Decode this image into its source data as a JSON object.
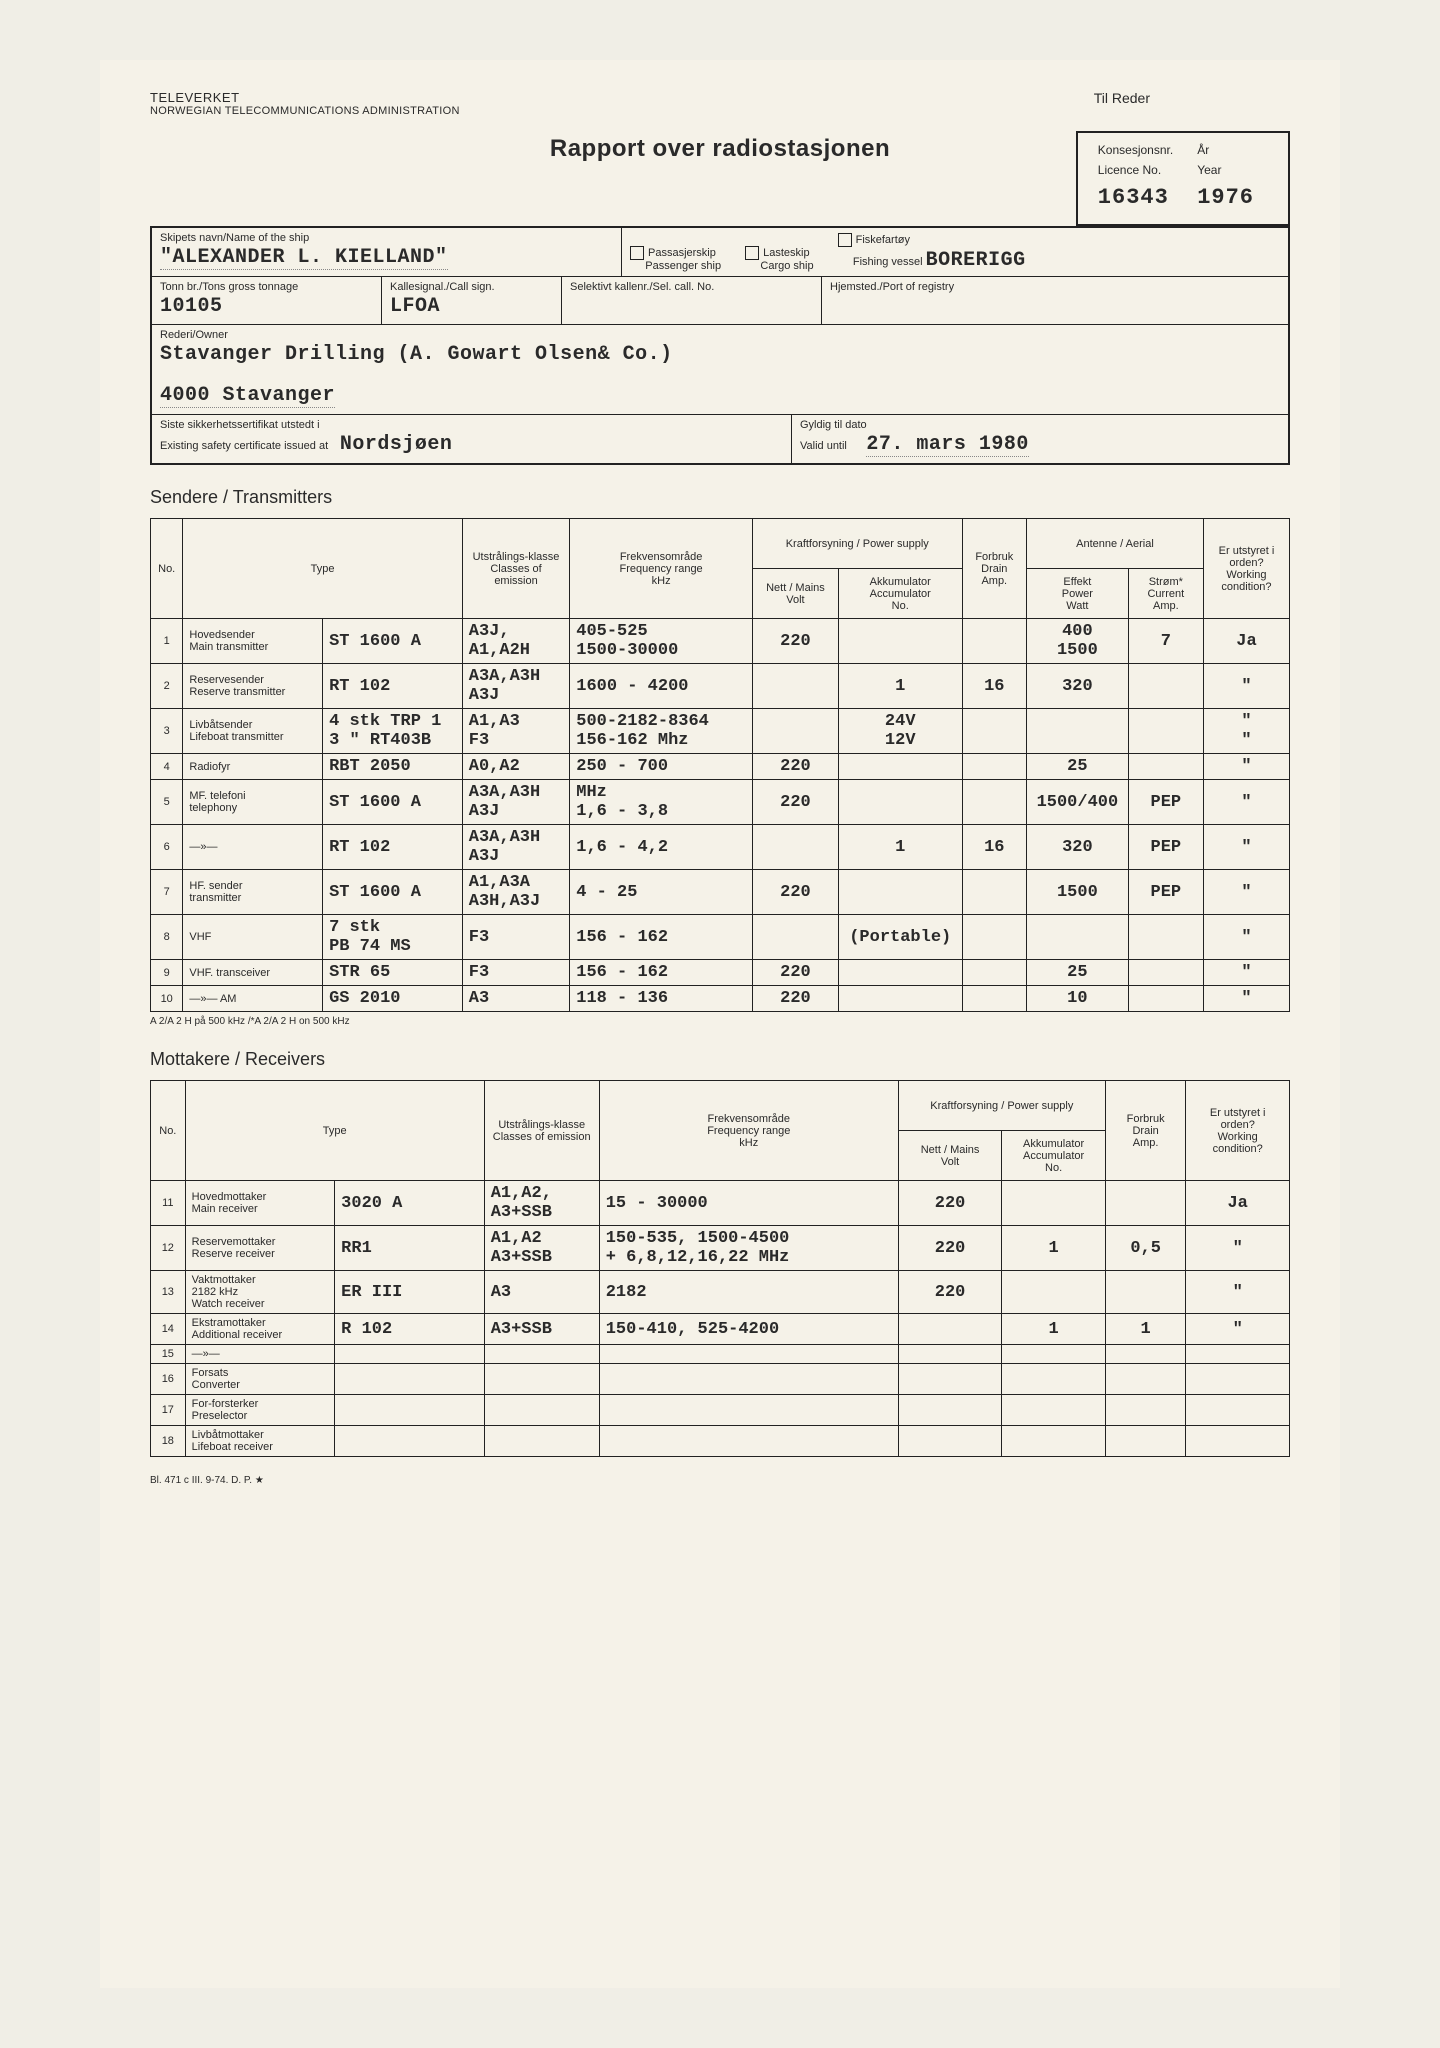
{
  "agency": {
    "name": "TELEVERKET",
    "sub": "NORWEGIAN TELECOMMUNICATIONS ADMINISTRATION"
  },
  "til_reder": "Til Reder",
  "title": "Rapport over radiostasjonen",
  "licence": {
    "no_label": "Konsesjonsnr.",
    "no_label_en": "Licence No.",
    "year_label": "År",
    "year_label_en": "Year",
    "no": "16343",
    "year": "1976"
  },
  "ship": {
    "name_label": "Skipets navn/Name of the ship",
    "name": "\"ALEXANDER L. KIELLAND\"",
    "types": {
      "passenger": "Passasjerskip",
      "passenger_en": "Passenger ship",
      "cargo": "Lasteskip",
      "cargo_en": "Cargo ship",
      "fishing": "Fiskefartøy",
      "fishing_en": "Fishing vessel",
      "other": "BORERIGG"
    },
    "tonnage_label": "Tonn br./Tons gross tonnage",
    "tonnage": "10105",
    "callsign_label": "Kallesignal./Call sign.",
    "callsign": "LFOA",
    "selcall_label": "Selektivt kallenr./Sel. call. No.",
    "selcall": "",
    "registry_label": "Hjemsted./Port of registry",
    "registry": "",
    "owner_label": "Rederi/Owner",
    "owner_line1": "Stavanger Drilling (A. Gowart Olsen& Co.)",
    "owner_line2": "4000 Stavanger",
    "cert_label": "Siste sikkerhetssertifikat utstedt i",
    "cert_label_en": "Existing safety certificate issued at",
    "cert_at": "Nordsjøen",
    "valid_label": "Gyldig til dato",
    "valid_label_en": "Valid until",
    "valid": "27. mars 1980"
  },
  "transmitters_title": "Sendere / Transmitters",
  "tx_headers": {
    "no": "No.",
    "type": "Type",
    "emission": "Utstrålings-klasse",
    "emission_en": "Classes of emission",
    "freq": "Frekvensområde",
    "freq_en": "Frequency range",
    "freq_unit": "kHz",
    "power": "Kraftforsyning / Power supply",
    "mains": "Nett / Mains",
    "mains_u": "Volt",
    "accum": "Akkumulator",
    "accum_en": "Accumulator",
    "accum_u": "No.",
    "drain": "Forbruk",
    "drain_en": "Drain",
    "drain_u": "Amp.",
    "aerial": "Antenne / Aerial",
    "watt": "Effekt",
    "watt_en": "Power",
    "watt_u": "Watt",
    "current": "Strøm*",
    "current_en": "Current",
    "current_u": "Amp.",
    "working": "Er utstyret i orden?",
    "working_en": "Working condition?"
  },
  "tx": [
    {
      "n": "1",
      "desc": "Hovedsender\nMain transmitter",
      "type": "ST 1600 A",
      "em": "A3J,\nA1,A2H",
      "freq": "405-525\n1500-30000",
      "volt": "220",
      "acc": "",
      "drain": "",
      "watt": "400\n1500",
      "curr": "7",
      "ok": "Ja"
    },
    {
      "n": "2",
      "desc": "Reservesender\nReserve transmitter",
      "type": "RT 102",
      "em": "A3A,A3H\nA3J",
      "freq": "1600 - 4200",
      "volt": "",
      "acc": "1",
      "drain": "16",
      "watt": "320",
      "curr": "",
      "ok": "\""
    },
    {
      "n": "3",
      "desc": "Livbåtsender\nLifeboat transmitter",
      "type": "4 stk TRP 1\n3  \" RT403B",
      "em": "A1,A3\nF3",
      "freq": "500-2182-8364\n156-162 Mhz",
      "volt": "",
      "acc": "24V\n12V",
      "drain": "",
      "watt": "",
      "curr": "",
      "ok": "\"\n\""
    },
    {
      "n": "4",
      "desc": "Radiofyr",
      "type": "RBT 2050",
      "em": "A0,A2",
      "freq": "250 - 700",
      "volt": "220",
      "acc": "",
      "drain": "",
      "watt": "25",
      "curr": "",
      "ok": "\""
    },
    {
      "n": "5",
      "desc": "MF. telefoni\n     telephony",
      "type": "ST 1600 A",
      "em": "A3A,A3H\nA3J",
      "freq": "MHz\n1,6 - 3,8",
      "volt": "220",
      "acc": "",
      "drain": "",
      "watt": "1500/400",
      "curr": "PEP",
      "ok": "\""
    },
    {
      "n": "6",
      "desc": "—»—",
      "type": "RT 102",
      "em": "A3A,A3H\nA3J",
      "freq": "1,6 - 4,2",
      "volt": "",
      "acc": "1",
      "drain": "16",
      "watt": "320",
      "curr": "PEP",
      "ok": "\""
    },
    {
      "n": "7",
      "desc": "HF. sender\n    transmitter",
      "type": "ST 1600 A",
      "em": "A1,A3A\nA3H,A3J",
      "freq": "4 - 25",
      "volt": "220",
      "acc": "",
      "drain": "",
      "watt": "1500",
      "curr": "PEP",
      "ok": "\""
    },
    {
      "n": "8",
      "desc": "VHF",
      "type": "7 stk\nPB 74 MS",
      "em": "F3",
      "freq": "156 - 162",
      "volt": "",
      "acc": "(Portable)",
      "drain": "",
      "watt": "",
      "curr": "",
      "ok": "\""
    },
    {
      "n": "9",
      "desc": "VHF. transceiver",
      "type": "STR 65",
      "em": "F3",
      "freq": "156 - 162",
      "volt": "220",
      "acc": "",
      "drain": "",
      "watt": "25",
      "curr": "",
      "ok": "\""
    },
    {
      "n": "10",
      "desc": "—»— AM",
      "type": "GS 2010",
      "em": "A3",
      "freq": "118 - 136",
      "volt": "220",
      "acc": "",
      "drain": "",
      "watt": "10",
      "curr": "",
      "ok": "\""
    }
  ],
  "tx_footnote": "A 2/A 2 H på 500 kHz /*A 2/A 2 H on 500 kHz",
  "receivers_title": "Mottakere / Receivers",
  "rx_headers": {
    "freq": "Frekvensområde",
    "freq_en": "Frequency range",
    "freq_unit": "kHz"
  },
  "rx": [
    {
      "n": "11",
      "desc": "Hovedmottaker\nMain receiver",
      "type": "3020 A",
      "em": "A1,A2,\nA3+SSB",
      "freq": "15 - 30000",
      "volt": "220",
      "acc": "",
      "drain": "",
      "ok": "Ja"
    },
    {
      "n": "12",
      "desc": "Reservemottaker\nReserve receiver",
      "type": "RR1",
      "em": "A1,A2\nA3+SSB",
      "freq": "150-535, 1500-4500\n+ 6,8,12,16,22 MHz",
      "volt": "220",
      "acc": "1",
      "drain": "0,5",
      "ok": "\""
    },
    {
      "n": "13",
      "desc": "Vaktmottaker\n2182 kHz\nWatch receiver",
      "type": "ER III",
      "em": "A3",
      "freq": "2182",
      "volt": "220",
      "acc": "",
      "drain": "",
      "ok": "\""
    },
    {
      "n": "14",
      "desc": "Ekstramottaker\nAdditional receiver",
      "type": "R 102",
      "em": "A3+SSB",
      "freq": "150-410, 525-4200",
      "volt": "",
      "acc": "1",
      "drain": "1",
      "ok": "\""
    },
    {
      "n": "15",
      "desc": "—»—",
      "type": "",
      "em": "",
      "freq": "",
      "volt": "",
      "acc": "",
      "drain": "",
      "ok": ""
    },
    {
      "n": "16",
      "desc": "Forsats\nConverter",
      "type": "",
      "em": "",
      "freq": "",
      "volt": "",
      "acc": "",
      "drain": "",
      "ok": ""
    },
    {
      "n": "17",
      "desc": "For-forsterker\nPreselector",
      "type": "",
      "em": "",
      "freq": "",
      "volt": "",
      "acc": "",
      "drain": "",
      "ok": ""
    },
    {
      "n": "18",
      "desc": "Livbåtmottaker\nLifeboat receiver",
      "type": "",
      "em": "",
      "freq": "",
      "volt": "",
      "acc": "",
      "drain": "",
      "ok": ""
    }
  ],
  "footer_code": "Bl. 471 c III. 9-74. D. P. ★"
}
